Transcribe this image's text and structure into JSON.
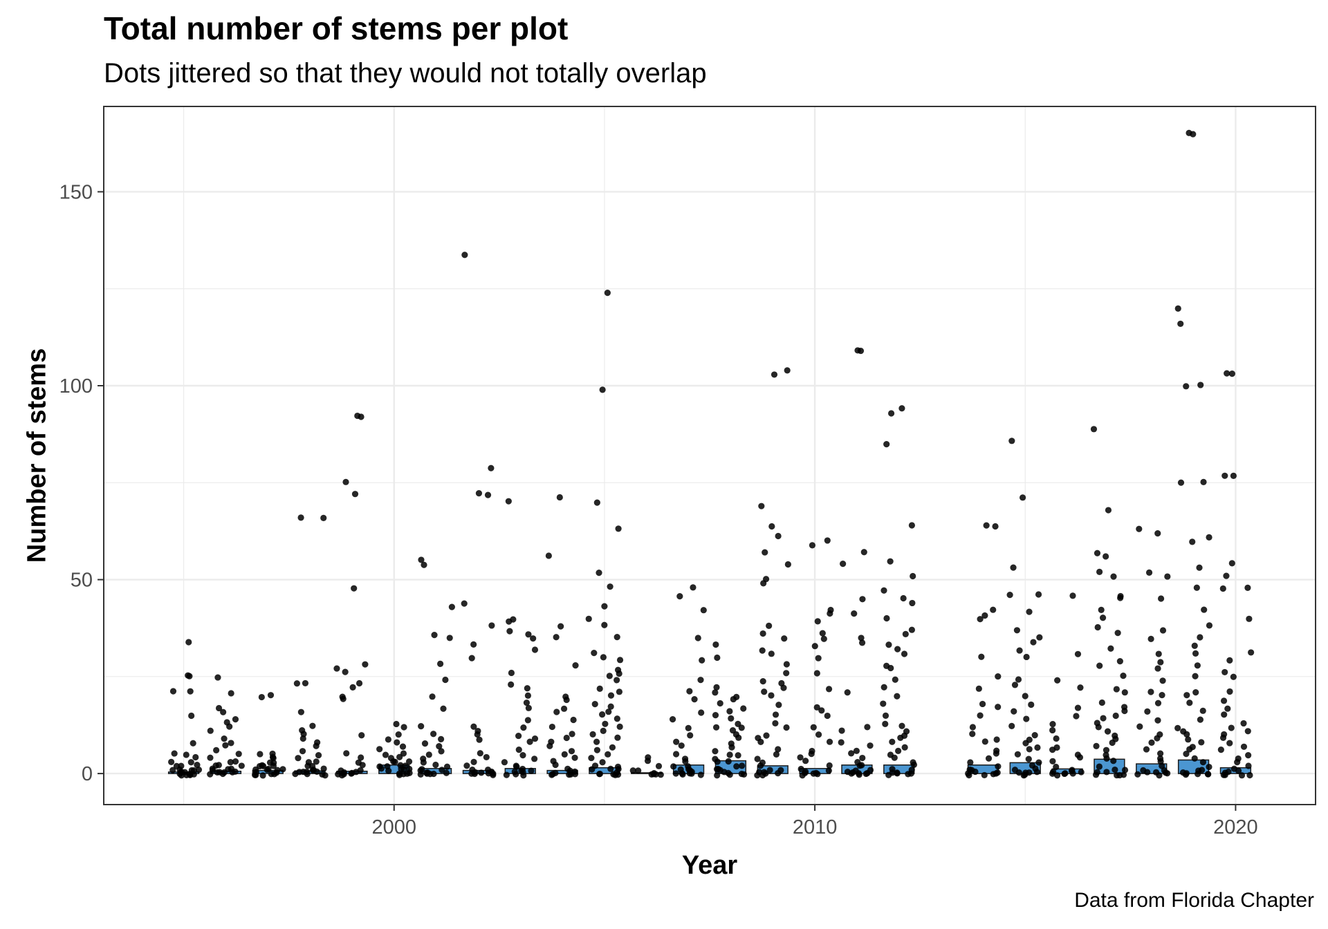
{
  "title": "Total number of stems per plot",
  "subtitle": "Dots jittered so that they would not totally overlap",
  "caption": "Data from Florida Chapter",
  "chart_data": {
    "type": "bar",
    "overlay": "jittered scatter (black points) per year",
    "xlabel": "Year",
    "ylabel": "Number of stems",
    "xlim": [
      1993.1,
      2021.9
    ],
    "ylim": [
      -8,
      172
    ],
    "x_ticks": [
      2000,
      2010,
      2020
    ],
    "y_ticks": [
      0,
      50,
      100,
      150
    ],
    "grid": true,
    "bar_color": "#4b96d1",
    "point_color": "#000000",
    "bars": {
      "years": [
        1995,
        1996,
        1997,
        1998,
        1999,
        2000,
        2001,
        2002,
        2003,
        2004,
        2005,
        2006,
        2007,
        2008,
        2009,
        2010,
        2011,
        2012,
        2014,
        2015,
        2016,
        2017,
        2018,
        2019,
        2020
      ],
      "mean_stems": [
        0.4,
        0.6,
        0.8,
        0.7,
        0.6,
        2.2,
        1.3,
        0.8,
        1.3,
        0.8,
        1.5,
        0.2,
        2.2,
        3.3,
        2.0,
        1.3,
        2.2,
        2.2,
        2.2,
        2.8,
        1.2,
        3.7,
        2.5,
        3.5,
        1.5
      ]
    },
    "points": [
      {
        "year": 1995,
        "values": [
          34,
          25,
          25,
          21,
          21,
          15,
          8,
          5,
          5,
          4,
          3,
          3,
          2,
          2,
          2,
          1,
          1,
          1,
          1,
          1,
          0,
          0,
          0,
          0,
          0,
          0,
          0,
          0,
          0,
          0
        ]
      },
      {
        "year": 1996,
        "values": [
          25,
          21,
          17,
          16,
          14,
          13,
          12,
          11,
          9,
          8,
          7,
          6,
          5,
          4,
          3,
          3,
          2,
          2,
          2,
          1,
          1,
          1,
          1,
          0,
          0,
          0,
          0,
          0,
          0,
          0
        ]
      },
      {
        "year": 1997,
        "values": [
          20,
          20,
          5,
          5,
          4,
          4,
          3,
          3,
          2,
          2,
          2,
          2,
          1,
          1,
          1,
          1,
          1,
          0,
          0,
          0,
          0,
          0,
          0,
          0
        ]
      },
      {
        "year": 1998,
        "values": [
          66,
          66,
          23,
          23,
          16,
          12,
          11,
          10,
          9,
          8,
          7,
          6,
          5,
          4,
          3,
          3,
          2,
          2,
          1,
          1,
          1,
          0,
          0,
          0,
          0,
          0,
          0,
          0,
          0
        ]
      },
      {
        "year": 1999,
        "values": [
          92,
          92,
          75,
          72,
          48,
          28,
          27,
          26,
          23,
          22,
          20,
          19,
          10,
          5,
          4,
          3,
          2,
          1,
          1,
          0,
          0,
          0,
          0,
          0,
          0,
          0
        ]
      },
      {
        "year": 2000,
        "values": [
          13,
          12,
          10,
          9,
          8,
          7,
          6,
          5,
          5,
          4,
          4,
          3,
          3,
          3,
          2,
          2,
          2,
          2,
          1,
          1,
          1,
          1,
          1,
          0,
          0,
          0,
          0,
          0
        ]
      },
      {
        "year": 2001,
        "values": [
          55,
          54,
          43,
          36,
          35,
          28,
          24,
          20,
          17,
          12,
          10,
          9,
          8,
          7,
          6,
          5,
          4,
          3,
          2,
          2,
          1,
          1,
          1,
          0,
          0,
          0,
          0,
          0,
          0,
          0
        ]
      },
      {
        "year": 2002,
        "values": [
          134,
          79,
          72,
          72,
          44,
          38,
          33,
          30,
          12,
          11,
          10,
          9,
          5,
          4,
          3,
          2,
          1,
          1,
          0,
          0,
          0,
          0,
          0,
          0,
          0,
          0
        ]
      },
      {
        "year": 2003,
        "values": [
          70,
          40,
          39,
          37,
          36,
          35,
          32,
          26,
          23,
          22,
          20,
          18,
          17,
          14,
          12,
          10,
          9,
          8,
          6,
          5,
          4,
          3,
          2,
          2,
          1,
          1,
          1,
          0,
          0,
          0,
          0,
          0
        ]
      },
      {
        "year": 2004,
        "values": [
          71,
          56,
          38,
          35,
          28,
          20,
          19,
          17,
          16,
          14,
          12,
          10,
          9,
          8,
          7,
          6,
          5,
          4,
          3,
          2,
          1,
          1,
          0,
          0,
          0,
          0,
          0,
          0,
          0
        ]
      },
      {
        "year": 2005,
        "values": [
          124,
          99,
          70,
          63,
          52,
          48,
          43,
          40,
          38,
          35,
          31,
          30,
          29,
          27,
          26,
          25,
          24,
          22,
          21,
          20,
          18,
          17,
          16,
          15,
          14,
          13,
          12,
          11,
          10,
          9,
          8,
          7,
          6,
          5,
          4,
          3,
          2,
          2,
          1,
          1,
          1,
          0,
          0,
          0,
          0,
          0,
          0
        ]
      },
      {
        "year": 2006,
        "values": [
          4,
          3,
          2,
          1,
          1,
          0,
          0,
          0,
          0,
          0
        ]
      },
      {
        "year": 2007,
        "values": [
          48,
          46,
          42,
          35,
          29,
          24,
          21,
          19,
          16,
          14,
          12,
          10,
          8,
          7,
          5,
          4,
          3,
          2,
          2,
          1,
          1,
          1,
          0,
          0,
          0,
          0,
          0,
          0,
          0
        ]
      },
      {
        "year": 2008,
        "values": [
          33,
          30,
          22,
          21,
          20,
          19,
          18,
          17,
          16,
          15,
          14,
          13,
          12,
          12,
          11,
          10,
          9,
          8,
          7,
          6,
          5,
          5,
          4,
          3,
          3,
          2,
          2,
          1,
          1,
          1,
          0,
          0,
          0,
          0,
          0,
          0
        ]
      },
      {
        "year": 2009,
        "values": [
          104,
          103,
          69,
          64,
          61,
          57,
          54,
          50,
          49,
          38,
          36,
          35,
          32,
          31,
          28,
          26,
          24,
          23,
          22,
          21,
          20,
          18,
          15,
          13,
          12,
          10,
          9,
          8,
          6,
          5,
          4,
          3,
          2,
          1,
          1,
          0,
          0,
          0,
          0,
          0,
          0
        ]
      },
      {
        "year": 2010,
        "values": [
          60,
          59,
          42,
          41,
          39,
          36,
          35,
          33,
          30,
          26,
          22,
          17,
          16,
          15,
          12,
          10,
          8,
          6,
          5,
          4,
          3,
          2,
          1,
          1,
          0,
          0,
          0,
          0,
          0,
          0
        ]
      },
      {
        "year": 2011,
        "values": [
          109,
          109,
          57,
          54,
          45,
          41,
          35,
          34,
          21,
          12,
          11,
          8,
          7,
          6,
          5,
          4,
          3,
          2,
          2,
          1,
          1,
          0,
          0,
          0,
          0,
          0,
          0,
          0
        ]
      },
      {
        "year": 2012,
        "values": [
          94,
          93,
          85,
          64,
          55,
          51,
          47,
          45,
          44,
          40,
          37,
          36,
          33,
          32,
          31,
          28,
          27,
          24,
          22,
          20,
          18,
          15,
          13,
          12,
          11,
          10,
          9,
          8,
          7,
          6,
          5,
          4,
          3,
          2,
          1,
          1,
          0,
          0,
          0,
          0,
          0,
          0
        ]
      },
      {
        "year": 2014,
        "values": [
          64,
          64,
          42,
          41,
          40,
          30,
          25,
          22,
          18,
          17,
          15,
          12,
          10,
          9,
          8,
          6,
          5,
          4,
          3,
          2,
          1,
          1,
          0,
          0,
          0,
          0,
          0,
          0,
          0
        ]
      },
      {
        "year": 2015,
        "values": [
          86,
          71,
          53,
          46,
          46,
          42,
          37,
          35,
          34,
          32,
          30,
          24,
          23,
          20,
          18,
          16,
          14,
          12,
          10,
          9,
          8,
          7,
          6,
          5,
          4,
          3,
          2,
          1,
          1,
          0,
          0,
          0,
          0,
          0,
          0
        ]
      },
      {
        "year": 2016,
        "values": [
          46,
          31,
          24,
          22,
          17,
          15,
          13,
          11,
          9,
          7,
          6,
          5,
          4,
          3,
          2,
          1,
          1,
          0,
          0,
          0,
          0,
          0,
          0,
          0
        ]
      },
      {
        "year": 2017,
        "values": [
          89,
          68,
          57,
          56,
          52,
          51,
          46,
          45,
          42,
          40,
          38,
          36,
          32,
          29,
          28,
          25,
          22,
          21,
          18,
          17,
          16,
          15,
          14,
          13,
          12,
          11,
          10,
          9,
          8,
          7,
          6,
          5,
          4,
          3,
          2,
          1,
          1,
          0,
          0,
          0,
          0,
          0,
          0
        ]
      },
      {
        "year": 2018,
        "values": [
          63,
          62,
          52,
          51,
          45,
          37,
          35,
          31,
          29,
          27,
          24,
          21,
          20,
          18,
          16,
          14,
          12,
          10,
          9,
          8,
          6,
          5,
          4,
          3,
          2,
          1,
          1,
          0,
          0,
          0,
          0,
          0,
          0
        ]
      },
      {
        "year": 2019,
        "values": [
          165,
          165,
          120,
          116,
          100,
          100,
          75,
          75,
          61,
          60,
          53,
          48,
          42,
          38,
          35,
          33,
          31,
          28,
          25,
          21,
          20,
          18,
          16,
          14,
          12,
          11,
          10,
          9,
          8,
          7,
          6,
          5,
          4,
          3,
          2,
          1,
          1,
          0,
          0,
          0,
          0,
          0,
          0
        ]
      },
      {
        "year": 2020,
        "values": [
          103,
          103,
          77,
          77,
          54,
          51,
          48,
          48,
          40,
          31,
          29,
          26,
          25,
          21,
          19,
          17,
          15,
          13,
          12,
          11,
          10,
          9,
          8,
          7,
          6,
          5,
          4,
          3,
          2,
          1,
          1,
          0,
          0,
          0,
          0,
          0,
          0
        ]
      }
    ]
  }
}
